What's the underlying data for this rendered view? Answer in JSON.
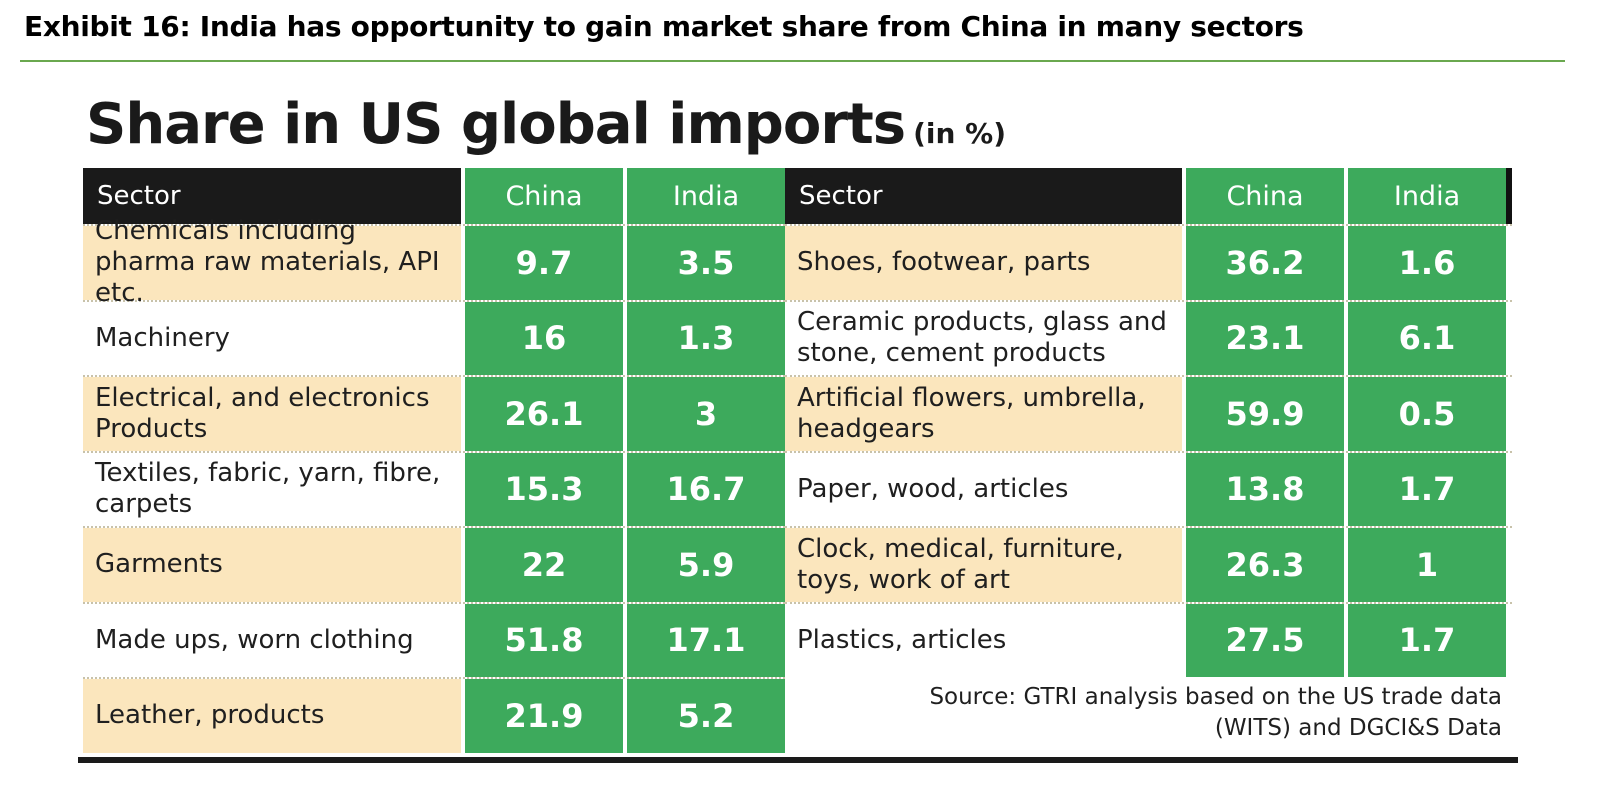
{
  "exhibit": {
    "title": "Exhibit 16: India has opportunity to gain market share from China in many sectors"
  },
  "chart_data": {
    "type": "table",
    "title": "Share in US global imports",
    "unit": "(in %)",
    "columns": [
      "Sector",
      "China",
      "India"
    ],
    "left_rows": [
      {
        "sector": "Chemicals including pharma raw materials, API etc.",
        "china": "9.7",
        "india": "3.5"
      },
      {
        "sector": "Machinery",
        "china": "16",
        "india": "1.3"
      },
      {
        "sector": "Electrical, and electronics Products",
        "china": "26.1",
        "india": "3"
      },
      {
        "sector": "Textiles, fabric, yarn, fibre, carpets",
        "china": "15.3",
        "india": "16.7"
      },
      {
        "sector": "Garments",
        "china": "22",
        "india": "5.9"
      },
      {
        "sector": "Made ups, worn clothing",
        "china": "51.8",
        "india": "17.1"
      },
      {
        "sector": "Leather, products",
        "china": "21.9",
        "india": "5.2"
      }
    ],
    "right_rows": [
      {
        "sector": "Shoes, footwear, parts",
        "china": "36.2",
        "india": "1.6"
      },
      {
        "sector": "Ceramic products, glass and stone, cement products",
        "china": "23.1",
        "india": "6.1"
      },
      {
        "sector": "Artificial flowers, umbrella, headgears",
        "china": "59.9",
        "india": "0.5"
      },
      {
        "sector": "Paper, wood, articles",
        "china": "13.8",
        "india": "1.7"
      },
      {
        "sector": "Clock, medical, furniture, toys, work of art",
        "china": "26.3",
        "india": "1"
      },
      {
        "sector": "Plastics, articles",
        "china": "27.5",
        "india": "1.7"
      }
    ],
    "source_line1": "Source: GTRI analysis based on the US trade data",
    "source_line2": "(WITS) and DGCI&S Data"
  }
}
